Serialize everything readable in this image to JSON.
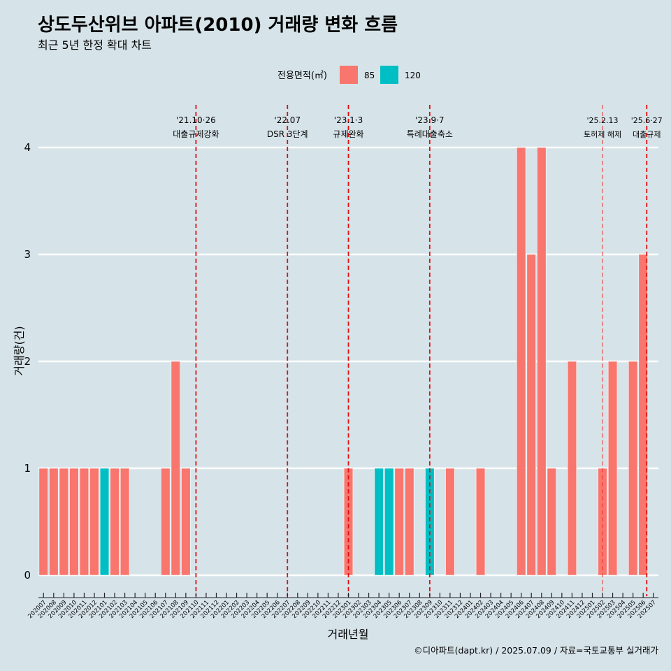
{
  "title": "상도두산위브 아파트(2010) 거래량 변화 흐름",
  "subtitle": "최근 5년 한정 확대 차트",
  "caption": "©디아파트(dapt.kr) / 2025.07.09 / 자료=국토교통부 실거래가",
  "chart_data": {
    "type": "bar",
    "title": "상도두산위브 아파트(2010) 거래량 변화 흐름",
    "xlabel": "거래년월",
    "ylabel": "거래량(건)",
    "ylim": [
      0,
      4
    ],
    "yticks": [
      0,
      1,
      2,
      3,
      4
    ],
    "grid": "horizontal",
    "legend": {
      "title": "전용면적(㎡)",
      "placement": "top",
      "entries": [
        {
          "name": "85",
          "color": "#f8766d"
        },
        {
          "name": "120",
          "color": "#00bfc4"
        }
      ]
    },
    "categories": [
      "202007",
      "202008",
      "202009",
      "202010",
      "202011",
      "202012",
      "202101",
      "202102",
      "202103",
      "202104",
      "202105",
      "202106",
      "202107",
      "202108",
      "202109",
      "202110",
      "202111",
      "202112",
      "202201",
      "202202",
      "202203",
      "202204",
      "202205",
      "202206",
      "202207",
      "202208",
      "202209",
      "202210",
      "202211",
      "202212",
      "202301",
      "202302",
      "202303",
      "202304",
      "202305",
      "202306",
      "202307",
      "202308",
      "202309",
      "202310",
      "202311",
      "202312",
      "202401",
      "202402",
      "202403",
      "202404",
      "202405",
      "202406",
      "202407",
      "202408",
      "202409",
      "202410",
      "202411",
      "202412",
      "202501",
      "202502",
      "202503",
      "202504",
      "202505",
      "202506",
      "202507"
    ],
    "series": [
      {
        "name": "85",
        "color": "#f8766d",
        "values": [
          1,
          1,
          1,
          1,
          1,
          1,
          0,
          1,
          1,
          0,
          0,
          0,
          1,
          2,
          1,
          0,
          0,
          0,
          0,
          0,
          0,
          0,
          0,
          0,
          0,
          0,
          0,
          0,
          0,
          0,
          1,
          0,
          0,
          0,
          0,
          1,
          1,
          0,
          0,
          0,
          1,
          0,
          0,
          1,
          0,
          0,
          0,
          4,
          3,
          4,
          1,
          0,
          2,
          0,
          0,
          1,
          2,
          0,
          2,
          3,
          0
        ]
      },
      {
        "name": "120",
        "color": "#00bfc4",
        "values": [
          0,
          0,
          0,
          0,
          0,
          0,
          1,
          0,
          0,
          0,
          0,
          0,
          0,
          0,
          0,
          0,
          0,
          0,
          0,
          0,
          0,
          0,
          0,
          0,
          0,
          0,
          0,
          0,
          0,
          0,
          0,
          0,
          0,
          1,
          1,
          0,
          0,
          0,
          1,
          0,
          0,
          0,
          0,
          0,
          0,
          0,
          0,
          0,
          0,
          0,
          0,
          0,
          0,
          0,
          0,
          0,
          0,
          0,
          0,
          0,
          0
        ]
      }
    ],
    "events": [
      {
        "date": "'21.10·26",
        "label": "대출규제강화",
        "at": "202110",
        "offset": 0.0
      },
      {
        "date": "'22.07",
        "label": "DSR 3단계",
        "at": "202207",
        "offset": 0.0
      },
      {
        "date": "'23.1·3",
        "label": "규제완화",
        "at": "202301",
        "offset": 0.0
      },
      {
        "date": "'23.9·7",
        "label": "특례대출축소",
        "at": "202309",
        "offset": 0.0
      },
      {
        "date": "'25.2.13",
        "label": "토허제 해제",
        "at": "202502",
        "offset": 0.0,
        "style": "thin"
      },
      {
        "date": "'25.6·27",
        "label": "대출규제",
        "at": "202506",
        "offset": 0.35
      }
    ]
  }
}
